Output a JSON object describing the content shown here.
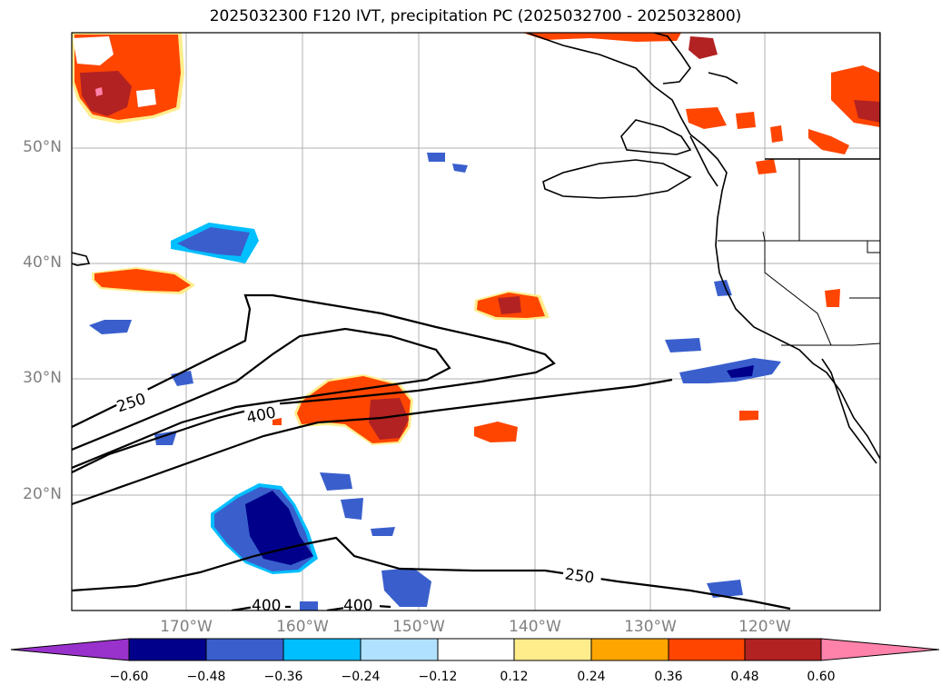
{
  "title": "2025032300 F120 IVT, precipitation PC (2025032700 - 2025032800)",
  "lat_labels": [
    "50°N",
    "40°N",
    "30°N",
    "20°N"
  ],
  "lon_labels": [
    "170°W",
    "160°W",
    "150°W",
    "140°W",
    "130°W",
    "120°W"
  ],
  "contour_labels": [
    "250",
    "400",
    "250",
    "400",
    "400"
  ],
  "colorbar": {
    "ticks": [
      "−0.60",
      "−0.48",
      "−0.36",
      "−0.24",
      "−0.12",
      "0.12",
      "0.24",
      "0.36",
      "0.48",
      "0.60"
    ],
    "colors": [
      "#9932cc",
      "#00008b",
      "#3a5fcd",
      "#00bfff",
      "#b0e2ff",
      "#ffffff",
      "#ffec8b",
      "#ffa500",
      "#ff4500",
      "#b22222",
      "#ff82ab"
    ]
  },
  "chart_data": {
    "type": "heatmap",
    "title": "2025032300 F120 IVT, precipitation PC (2025032700 - 2025032800)",
    "x_ticks": [
      "170°W",
      "160°W",
      "150°W",
      "140°W",
      "130°W",
      "120°W"
    ],
    "y_ticks": [
      "50°N",
      "40°N",
      "30°N",
      "20°N"
    ],
    "contour_levels": [
      250,
      400
    ],
    "colorbar_levels": [
      -0.6,
      -0.48,
      -0.36,
      -0.24,
      -0.12,
      0.12,
      0.24,
      0.36,
      0.48,
      0.6
    ]
  }
}
